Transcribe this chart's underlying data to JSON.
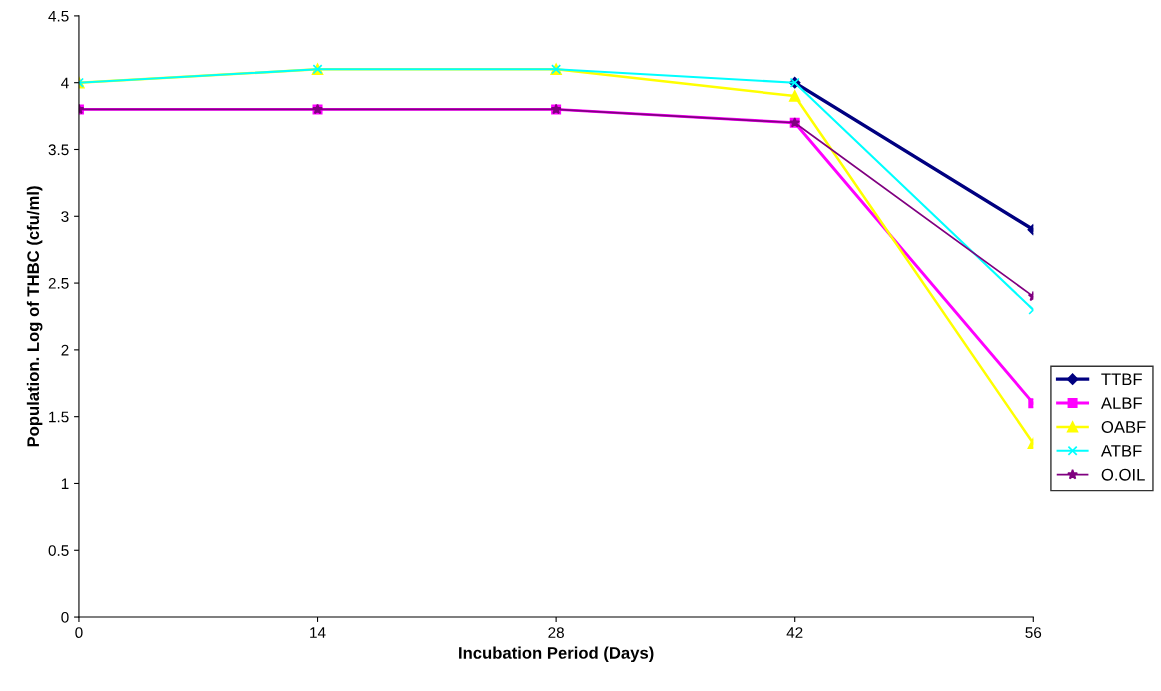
{
  "chart_data": {
    "type": "line",
    "xlabel": "Incubation Period (Days)",
    "ylabel": "Population. Log of THBC (cfu/ml)",
    "categories": [
      "0",
      "14",
      "28",
      "42",
      "56"
    ],
    "series": [
      {
        "name": "TTBF",
        "color": "#000080",
        "marker": "diamond",
        "values": [
          null,
          null,
          null,
          4,
          2.9
        ]
      },
      {
        "name": "ALBF",
        "color": "#ff00ff",
        "marker": "square",
        "values": [
          3.8,
          3.8,
          3.8,
          3.7,
          1.6
        ]
      },
      {
        "name": "OABF",
        "color": "#ffff00",
        "marker": "triangle",
        "values": [
          4,
          4.1,
          4.1,
          3.9,
          1.3
        ]
      },
      {
        "name": "ATBF",
        "color": "#00ffff",
        "marker": "cross",
        "values": [
          4,
          4.1,
          4.1,
          4,
          2.3
        ]
      },
      {
        "name": "O.OIL",
        "color": "#800080",
        "marker": "star",
        "values": [
          3.8,
          3.8,
          3.8,
          3.7,
          2.4
        ]
      }
    ],
    "ylim": [
      0,
      4.5
    ],
    "yticks": [
      0,
      0.5,
      1,
      1.5,
      2,
      2.5,
      3,
      3.5,
      4,
      4.5
    ],
    "grid": false,
    "legend": "right",
    "line_style": "solid"
  }
}
